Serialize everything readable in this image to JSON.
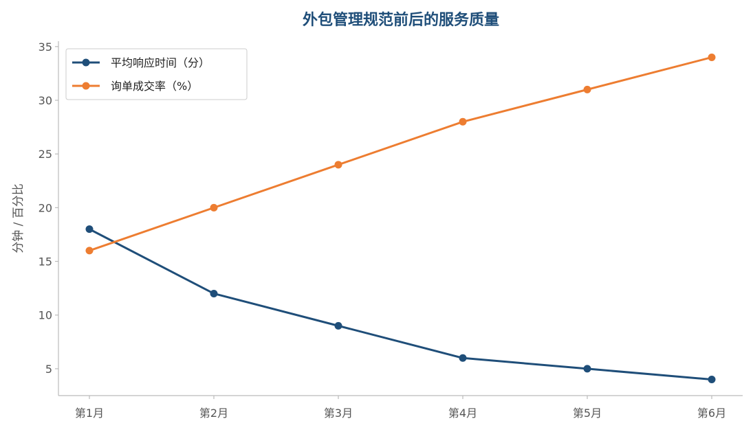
{
  "chart_data": {
    "type": "line",
    "title": "外包管理规范前后的服务质量",
    "xlabel": "",
    "ylabel": "分钟 / 百分比",
    "categories": [
      "第1月",
      "第2月",
      "第3月",
      "第4月",
      "第5月",
      "第6月"
    ],
    "series": [
      {
        "name": "平均响应时间（分）",
        "values": [
          18,
          12,
          9,
          6,
          5,
          4
        ],
        "color": "#1f4e79"
      },
      {
        "name": "询单成交率（%）",
        "values": [
          16,
          20,
          24,
          28,
          31,
          34
        ],
        "color": "#ed7d31"
      }
    ],
    "yticks": [
      5,
      10,
      15,
      20,
      25,
      30,
      35
    ],
    "ylim": [
      2.5,
      35.5
    ],
    "grid": false,
    "legend_position": "top-left",
    "title_color": "#1f4e79",
    "axis_color": "#bbbbbb"
  }
}
